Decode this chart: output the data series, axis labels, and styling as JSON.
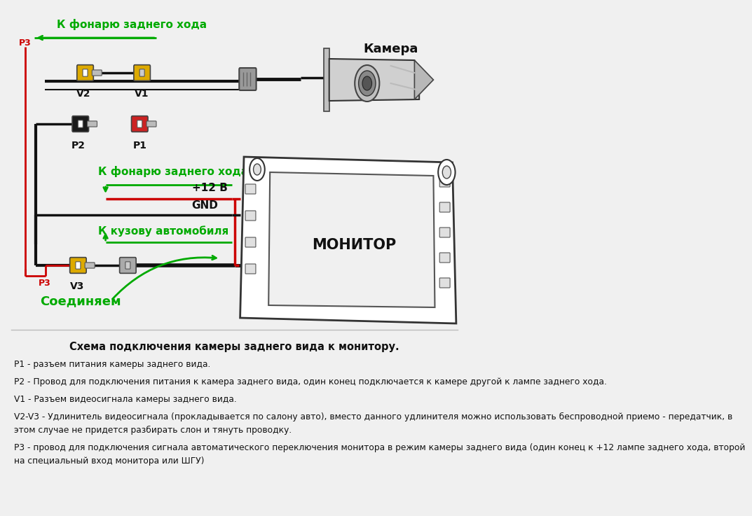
{
  "bg_color": "#f0f0f0",
  "title": "Схема подключения камеры заднего вида к монитору.",
  "label_camera": "Камера",
  "label_monitor": "МОНИТОР",
  "label_v1": "V1",
  "label_v2": "V2",
  "label_v3": "V3",
  "label_p1": "P1",
  "label_p2": "P2",
  "label_p3_top": "P3",
  "label_p3_bot": "P3",
  "label_fonari_top": "К фонарю заднего хода",
  "label_fonari_mid": "К фонарю заднего хода",
  "label_kuzov": "К кузову автомобиля",
  "label_soedinyaem": "Соединяем",
  "label_12v": "+12 В",
  "label_gnd": "GND",
  "green_color": "#00aa00",
  "red_color": "#cc0000",
  "black_color": "#111111",
  "yellow_color": "#ddaa00",
  "gray_color": "#888888",
  "white_color": "#ffffff",
  "desc_title": "Схема подключения камеры заднего вида к монитору.",
  "desc_p1": "P1 - разъем питания камеры заднего вида.",
  "desc_p2": "P2 - Провод для подключения питания к камера заднего вида, один конец подключается к камере другой к лампе заднего хода.",
  "desc_v1": "V1 - Разъем видеосигнала камеры заднего вида.",
  "desc_v2v3_1": "V2-V3 - Удлинитель видеосигнала (прокладывается по салону авто), вместо данного удлинителя можно использовать беспроводной приемо - передатчик, в",
  "desc_v2v3_2": "этом случае не придется разбирать слон и тянуть проводку.",
  "desc_p3_1": "Р3 - провод для подключения сигнала автоматического переключения монитора в режим камеры заднего вида (один конец к +12 лампе заднего хода, второй",
  "desc_p3_2": "на специальный вход монитора или ШГУ)"
}
